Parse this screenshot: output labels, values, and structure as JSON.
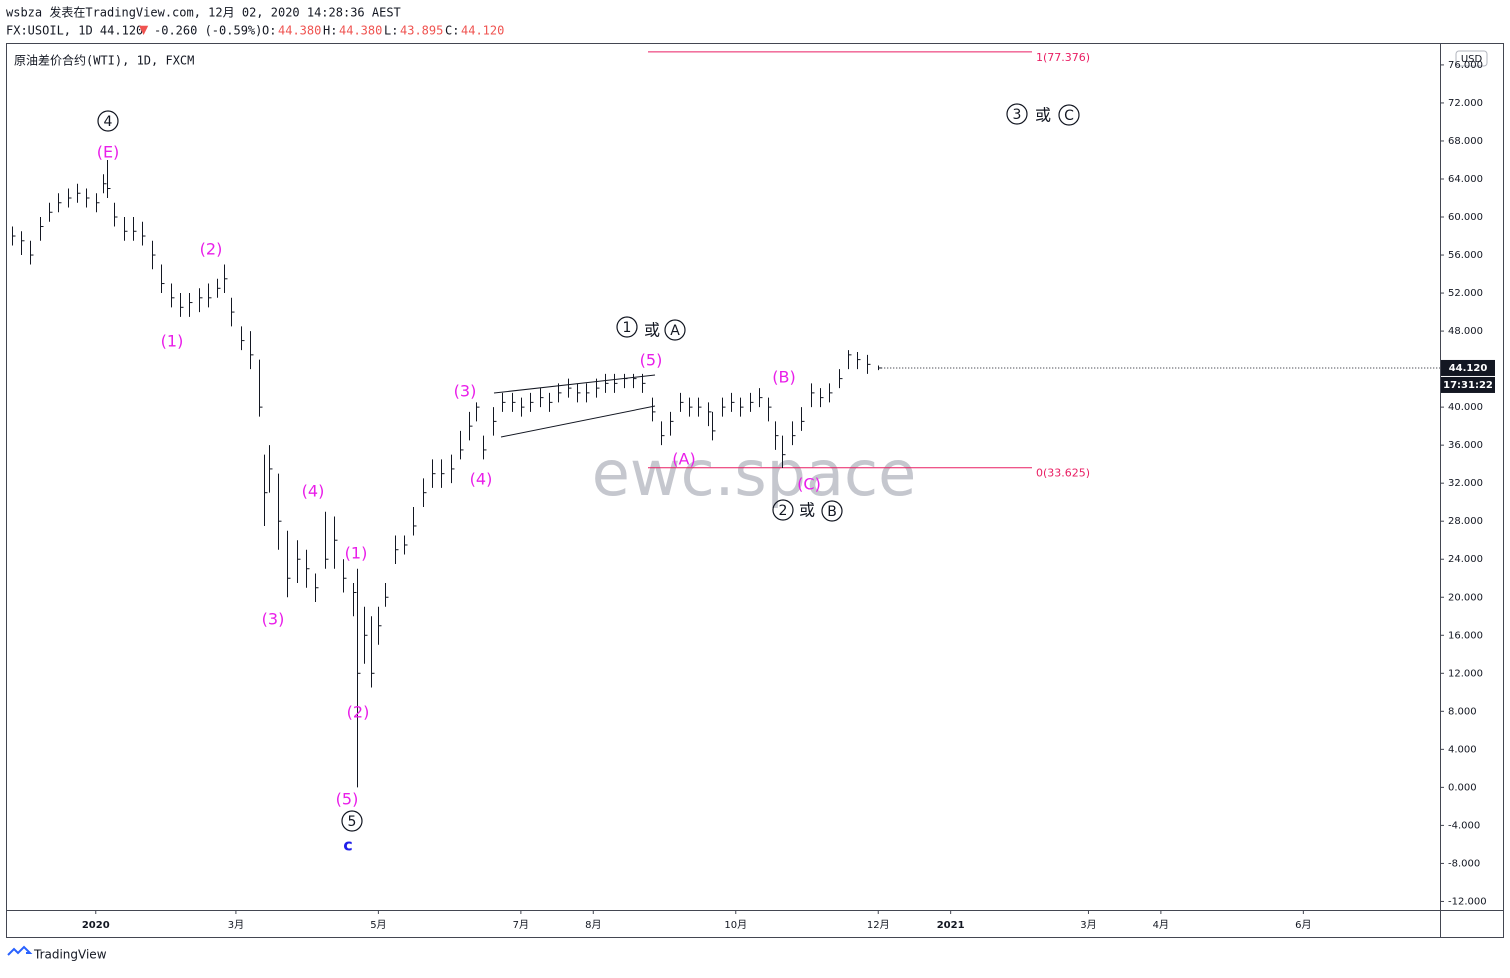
{
  "header": {
    "author_line": "wsbza 发表在TradingView.com, 12月 02, 2020 14:28:36 AEST",
    "symbol": "FX:USOIL, 1D 44.120",
    "arrow": "▼",
    "change": "-0.260 (-0.59%)",
    "o_label": "O:",
    "o": "44.380",
    "h_label": "H:",
    "h": "44.380",
    "l_label": "L:",
    "l": "43.895",
    "c_label": "C:",
    "c": "44.120"
  },
  "chart_data": {
    "type": "ohlc",
    "title": "原油差价合约(WTI), 1D, FXCM",
    "watermark": "ewc.space",
    "currency": "USD",
    "color": "#131722",
    "xlim": [
      -38,
      575.5
    ],
    "ylim": [
      -12.9,
      78.2
    ],
    "xticks": [
      {
        "value": 0,
        "label": "2020"
      },
      {
        "value": 60,
        "label": "3月"
      },
      {
        "value": 121,
        "label": "5月"
      },
      {
        "value": 182,
        "label": "7月"
      },
      {
        "value": 213,
        "label": "8月"
      },
      {
        "value": 274,
        "label": "10月"
      },
      {
        "value": 335,
        "label": "12月"
      },
      {
        "value": 366,
        "label": "2021"
      },
      {
        "value": 425,
        "label": "3月"
      },
      {
        "value": 456,
        "label": "4月"
      },
      {
        "value": 517,
        "label": "6月"
      }
    ],
    "yticks": [
      {
        "value": -12,
        "label": "-12.000"
      },
      {
        "value": -8,
        "label": "-8.000"
      },
      {
        "value": -4,
        "label": "-4.000"
      },
      {
        "value": 0,
        "label": "0.000"
      },
      {
        "value": 4,
        "label": "4.000"
      },
      {
        "value": 8,
        "label": "8.000"
      },
      {
        "value": 12,
        "label": "12.000"
      },
      {
        "value": 16,
        "label": "16.000"
      },
      {
        "value": 20,
        "label": "20.000"
      },
      {
        "value": 24,
        "label": "24.000"
      },
      {
        "value": 28,
        "label": "28.000"
      },
      {
        "value": 32,
        "label": "32.000"
      },
      {
        "value": 36,
        "label": "36.000"
      },
      {
        "value": 40,
        "label": "40.000"
      },
      {
        "value": 44,
        "label": "44.000"
      },
      {
        "value": 48,
        "label": "48.000"
      },
      {
        "value": 52,
        "label": "52.000"
      },
      {
        "value": 56,
        "label": "56.000"
      },
      {
        "value": 60,
        "label": "60.000"
      },
      {
        "value": 64,
        "label": "64.000"
      },
      {
        "value": 68,
        "label": "68.000"
      },
      {
        "value": 72,
        "label": "72.000"
      },
      {
        "value": 76,
        "label": "76.000"
      }
    ],
    "last_price": {
      "value": 44.12,
      "label": "44.120"
    },
    "countdown": "17:31:22",
    "fib_levels": [
      {
        "value": 77.376,
        "label": "1(77.376)"
      },
      {
        "value": 33.625,
        "label": "0(33.625)"
      }
    ],
    "annotations": [
      {
        "text": "4",
        "circled": true
      },
      {
        "text": "(E)"
      },
      {
        "text": "(2)"
      },
      {
        "text": "(1)"
      },
      {
        "text": "(4)"
      },
      {
        "text": "(3)"
      },
      {
        "text": "(1)"
      },
      {
        "text": "(2)"
      },
      {
        "text": "(5)"
      },
      {
        "text": "5",
        "circled": true
      },
      {
        "text": "c"
      },
      {
        "text": "(3)"
      },
      {
        "text": "(4)"
      },
      {
        "text": "(5)"
      },
      {
        "text": "1",
        "circled": true
      },
      {
        "text": "或"
      },
      {
        "text": "A",
        "circled": true
      },
      {
        "text": "(A)"
      },
      {
        "text": "(B)"
      },
      {
        "text": "(C)"
      },
      {
        "text": "2",
        "circled": true
      },
      {
        "text": "或"
      },
      {
        "text": "B",
        "circled": true
      },
      {
        "text": "3",
        "circled": true
      },
      {
        "text": "或"
      },
      {
        "text": "C",
        "circled": true
      }
    ],
    "bars": [
      {
        "x": -36,
        "close": 58,
        "high": 59,
        "low": 57
      },
      {
        "x": -32,
        "close": 57.5,
        "high": 58.5,
        "low": 56
      },
      {
        "x": -28,
        "close": 56,
        "high": 57.5,
        "low": 55
      },
      {
        "x": -24,
        "close": 59,
        "high": 60,
        "low": 57.5
      },
      {
        "x": -20,
        "close": 60.5,
        "high": 61.5,
        "low": 59.5
      },
      {
        "x": -16,
        "close": 61.5,
        "high": 62.5,
        "low": 60.5
      },
      {
        "x": -12,
        "close": 62,
        "high": 63,
        "low": 61
      },
      {
        "x": -8,
        "close": 62.5,
        "high": 63.5,
        "low": 61.5
      },
      {
        "x": -4,
        "close": 62,
        "high": 63,
        "low": 61
      },
      {
        "x": 0,
        "close": 61.5,
        "high": 62.5,
        "low": 60.5
      },
      {
        "x": 3,
        "close": 63.5,
        "high": 64.5,
        "low": 62.5
      },
      {
        "x": 5,
        "close": 63,
        "high": 66,
        "low": 62
      },
      {
        "x": 8,
        "close": 60,
        "high": 61.5,
        "low": 59
      },
      {
        "x": 12,
        "close": 58.5,
        "high": 60,
        "low": 57.5
      },
      {
        "x": 16,
        "close": 58.5,
        "high": 60,
        "low": 57.5
      },
      {
        "x": 20,
        "close": 58,
        "high": 59.5,
        "low": 57
      },
      {
        "x": 24,
        "close": 56,
        "high": 57.5,
        "low": 54.5
      },
      {
        "x": 28,
        "close": 53,
        "high": 55,
        "low": 52
      },
      {
        "x": 32,
        "close": 51.5,
        "high": 53,
        "low": 50.5
      },
      {
        "x": 36,
        "close": 50.5,
        "high": 52,
        "low": 49.5
      },
      {
        "x": 40,
        "close": 51,
        "high": 52,
        "low": 49.5
      },
      {
        "x": 44,
        "close": 51.5,
        "high": 52.5,
        "low": 50
      },
      {
        "x": 48,
        "close": 51.5,
        "high": 53,
        "low": 50.5
      },
      {
        "x": 52,
        "close": 52.5,
        "high": 53.5,
        "low": 51.5
      },
      {
        "x": 55,
        "close": 53.5,
        "high": 55,
        "low": 52
      },
      {
        "x": 58,
        "close": 50,
        "high": 51.5,
        "low": 48.5
      },
      {
        "x": 62,
        "close": 47,
        "high": 48.5,
        "low": 46
      },
      {
        "x": 66,
        "close": 45.5,
        "high": 48,
        "low": 44
      },
      {
        "x": 70,
        "close": 40,
        "high": 45,
        "low": 39
      },
      {
        "x": 72,
        "close": 31,
        "high": 35,
        "low": 27.5
      },
      {
        "x": 74,
        "close": 33.5,
        "high": 36,
        "low": 31
      },
      {
        "x": 78,
        "close": 28,
        "high": 33,
        "low": 25
      },
      {
        "x": 82,
        "close": 22,
        "high": 27,
        "low": 20
      },
      {
        "x": 86,
        "close": 24,
        "high": 26,
        "low": 21.5
      },
      {
        "x": 90,
        "close": 23,
        "high": 25,
        "low": 21
      },
      {
        "x": 94,
        "close": 21,
        "high": 22.5,
        "low": 19.5
      },
      {
        "x": 98,
        "close": 24,
        "high": 29,
        "low": 23
      },
      {
        "x": 102,
        "close": 26,
        "high": 28.5,
        "low": 23
      },
      {
        "x": 106,
        "close": 22,
        "high": 24,
        "low": 20.5
      },
      {
        "x": 110,
        "close": 20.5,
        "high": 21.5,
        "low": 18
      },
      {
        "x": 112,
        "close": 12,
        "high": 23,
        "low": 0
      },
      {
        "x": 115,
        "close": 16,
        "high": 19,
        "low": 13
      },
      {
        "x": 118,
        "close": 12,
        "high": 18,
        "low": 10.5
      },
      {
        "x": 121,
        "close": 17,
        "high": 19,
        "low": 15
      },
      {
        "x": 124,
        "close": 20,
        "high": 21.5,
        "low": 19
      },
      {
        "x": 128,
        "close": 25,
        "high": 26.5,
        "low": 23.5
      },
      {
        "x": 132,
        "close": 25.5,
        "high": 26.5,
        "low": 24.5
      },
      {
        "x": 136,
        "close": 27.5,
        "high": 29.5,
        "low": 26.5
      },
      {
        "x": 140,
        "close": 31,
        "high": 32.5,
        "low": 29.5
      },
      {
        "x": 144,
        "close": 33,
        "high": 34.5,
        "low": 31.5
      },
      {
        "x": 148,
        "close": 33,
        "high": 34.5,
        "low": 31.5
      },
      {
        "x": 152,
        "close": 33.5,
        "high": 35,
        "low": 32
      },
      {
        "x": 156,
        "close": 35.5,
        "high": 37.5,
        "low": 34.5
      },
      {
        "x": 160,
        "close": 38,
        "high": 39.5,
        "low": 36.5
      },
      {
        "x": 163,
        "close": 40,
        "high": 40.5,
        "low": 38.5
      },
      {
        "x": 166,
        "close": 35.5,
        "high": 37,
        "low": 34.5
      },
      {
        "x": 170,
        "close": 38.5,
        "high": 40,
        "low": 37
      },
      {
        "x": 174,
        "close": 40.5,
        "high": 41.5,
        "low": 39.5
      },
      {
        "x": 178,
        "close": 40.5,
        "high": 41.5,
        "low": 39.5
      },
      {
        "x": 182,
        "close": 40,
        "high": 41,
        "low": 39
      },
      {
        "x": 186,
        "close": 40.5,
        "high": 41.5,
        "low": 39.5
      },
      {
        "x": 190,
        "close": 41,
        "high": 42,
        "low": 40
      },
      {
        "x": 194,
        "close": 40.5,
        "high": 41.5,
        "low": 39.5
      },
      {
        "x": 198,
        "close": 41.5,
        "high": 42.5,
        "low": 40.5
      },
      {
        "x": 202,
        "close": 42,
        "high": 43,
        "low": 41
      },
      {
        "x": 206,
        "close": 41.5,
        "high": 42.5,
        "low": 40.5
      },
      {
        "x": 210,
        "close": 41.5,
        "high": 42.5,
        "low": 40.5
      },
      {
        "x": 214,
        "close": 42,
        "high": 43,
        "low": 41
      },
      {
        "x": 218,
        "close": 42.5,
        "high": 43.5,
        "low": 41.5
      },
      {
        "x": 222,
        "close": 42.5,
        "high": 43.5,
        "low": 41.5
      },
      {
        "x": 226,
        "close": 43,
        "high": 43.5,
        "low": 42
      },
      {
        "x": 230,
        "close": 43,
        "high": 43.5,
        "low": 42
      },
      {
        "x": 234,
        "close": 42.5,
        "high": 43.5,
        "low": 41.5
      },
      {
        "x": 238,
        "close": 39.5,
        "high": 41,
        "low": 38.5
      },
      {
        "x": 242,
        "close": 37,
        "high": 38.5,
        "low": 36
      },
      {
        "x": 246,
        "close": 38.5,
        "high": 39.5,
        "low": 37
      },
      {
        "x": 250,
        "close": 40.5,
        "high": 41.5,
        "low": 39.5
      },
      {
        "x": 254,
        "close": 40,
        "high": 41,
        "low": 39
      },
      {
        "x": 258,
        "close": 40,
        "high": 41,
        "low": 39
      },
      {
        "x": 262,
        "close": 39.5,
        "high": 40.5,
        "low": 38
      },
      {
        "x": 264,
        "close": 37.5,
        "high": 39.5,
        "low": 36.5
      },
      {
        "x": 268,
        "close": 40,
        "high": 41,
        "low": 39
      },
      {
        "x": 272,
        "close": 40.5,
        "high": 41.5,
        "low": 39.5
      },
      {
        "x": 276,
        "close": 40,
        "high": 41,
        "low": 39
      },
      {
        "x": 280,
        "close": 40.5,
        "high": 41.5,
        "low": 39.5
      },
      {
        "x": 284,
        "close": 41,
        "high": 42,
        "low": 40
      },
      {
        "x": 288,
        "close": 40,
        "high": 41,
        "low": 38.5
      },
      {
        "x": 291,
        "close": 37,
        "high": 38.5,
        "low": 35.5
      },
      {
        "x": 294,
        "close": 35,
        "high": 37,
        "low": 33.6
      },
      {
        "x": 298,
        "close": 37,
        "high": 38.5,
        "low": 36
      },
      {
        "x": 302,
        "close": 38.5,
        "high": 40,
        "low": 37.5
      },
      {
        "x": 306,
        "close": 41.5,
        "high": 42.5,
        "low": 40
      },
      {
        "x": 310,
        "close": 41,
        "high": 42,
        "low": 40
      },
      {
        "x": 314,
        "close": 41.5,
        "high": 42.5,
        "low": 40.5
      },
      {
        "x": 318,
        "close": 43,
        "high": 44,
        "low": 42
      },
      {
        "x": 322,
        "close": 45.5,
        "high": 46,
        "low": 44
      },
      {
        "x": 326,
        "close": 45,
        "high": 45.8,
        "low": 44
      },
      {
        "x": 330,
        "close": 44.5,
        "high": 45.5,
        "low": 43.5
      },
      {
        "x": 335,
        "close": 44.12,
        "high": 44.38,
        "low": 43.895
      }
    ]
  },
  "footer": {
    "brand": "TradingView"
  }
}
